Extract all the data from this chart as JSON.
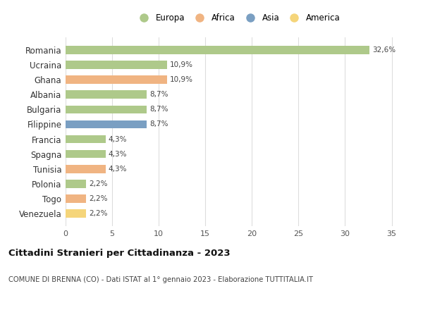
{
  "countries": [
    "Romania",
    "Ucraina",
    "Ghana",
    "Albania",
    "Bulgaria",
    "Filippine",
    "Francia",
    "Spagna",
    "Tunisia",
    "Polonia",
    "Togo",
    "Venezuela"
  ],
  "values": [
    32.6,
    10.9,
    10.9,
    8.7,
    8.7,
    8.7,
    4.3,
    4.3,
    4.3,
    2.2,
    2.2,
    2.2
  ],
  "labels": [
    "32,6%",
    "10,9%",
    "10,9%",
    "8,7%",
    "8,7%",
    "8,7%",
    "4,3%",
    "4,3%",
    "4,3%",
    "2,2%",
    "2,2%",
    "2,2%"
  ],
  "colors": [
    "#aec98a",
    "#aec98a",
    "#f0b482",
    "#aec98a",
    "#aec98a",
    "#7a9fc2",
    "#aec98a",
    "#aec98a",
    "#f0b482",
    "#aec98a",
    "#f0b482",
    "#f5d57a"
  ],
  "legend_labels": [
    "Europa",
    "Africa",
    "Asia",
    "America"
  ],
  "legend_colors": [
    "#aec98a",
    "#f0b482",
    "#7a9fc2",
    "#f5d57a"
  ],
  "title": "Cittadini Stranieri per Cittadinanza - 2023",
  "subtitle": "COMUNE DI BRENNA (CO) - Dati ISTAT al 1° gennaio 2023 - Elaborazione TUTTITALIA.IT",
  "xlim": [
    0,
    37
  ],
  "xticks": [
    0,
    5,
    10,
    15,
    20,
    25,
    30,
    35
  ],
  "bg_color": "#ffffff",
  "grid_color": "#dddddd",
  "bar_height": 0.55
}
